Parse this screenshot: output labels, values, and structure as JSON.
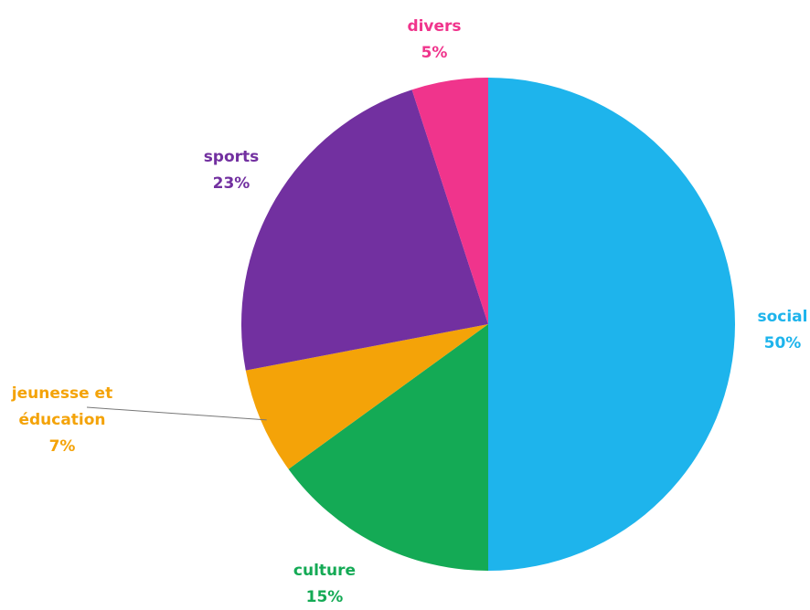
{
  "chart_data": {
    "type": "pie",
    "title": "",
    "start": "12 o'clock",
    "direction": "clockwise",
    "legend": "none (labels next to slices)",
    "slices": [
      {
        "label": "social",
        "value": 50,
        "value_label": "50%",
        "color": "#1EB4EC"
      },
      {
        "label": "culture",
        "value": 15,
        "value_label": "15%",
        "color": "#14AA55"
      },
      {
        "label_lines": [
          "jeunesse et",
          "éducation"
        ],
        "value": 7,
        "value_label": "7%",
        "color": "#F4A308",
        "leader_line": true
      },
      {
        "label": "sports",
        "value": 23,
        "value_label": "23%",
        "color": "#7230A0"
      },
      {
        "label": "divers",
        "value": 5,
        "value_label": "5%",
        "color": "#F0348C"
      }
    ]
  }
}
